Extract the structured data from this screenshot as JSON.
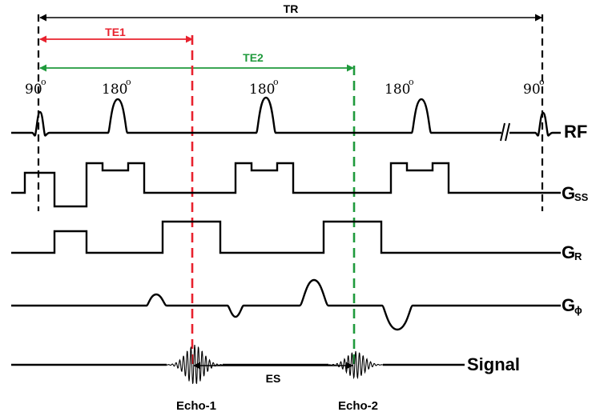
{
  "labels": {
    "tr": "TR",
    "te1": "TE1",
    "te2": "TE2",
    "es": "ES",
    "pulse_90": "90",
    "pulse_180": "180",
    "degree_mark": "o",
    "rf": "RF",
    "gss_main": "G",
    "gss_sub": "SS",
    "gr_main": "G",
    "gr_sub": "R",
    "gphi_main": "G",
    "gphi_sub": "ϕ",
    "signal": "Signal",
    "echo1": "Echo-1",
    "echo2": "Echo-2"
  },
  "colors": {
    "black": "#000000",
    "te1": "#e8222e",
    "te2": "#1f9a3c"
  }
}
